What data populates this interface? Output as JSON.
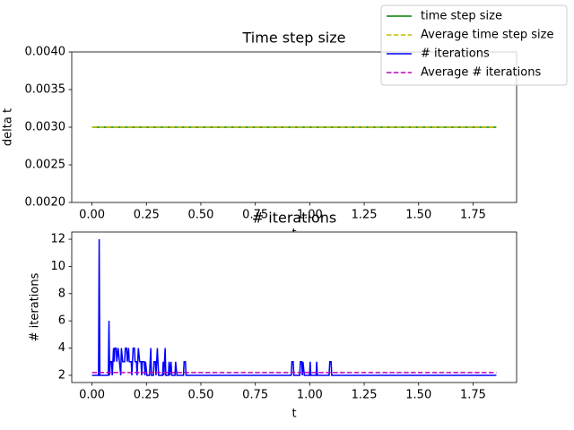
{
  "chart_data": [
    {
      "type": "line",
      "title": "Time step size",
      "x_label": "t",
      "y_label": "delta t",
      "xlim": [
        -0.093,
        1.95
      ],
      "ylim": [
        0.002,
        0.004
      ],
      "xticks": [
        {
          "value": 0,
          "label": "0.00"
        },
        {
          "value": 0.25,
          "label": "0.25"
        },
        {
          "value": 0.5,
          "label": "0.50"
        },
        {
          "value": 0.75,
          "label": "0.75"
        },
        {
          "value": 1,
          "label": "1.00"
        },
        {
          "value": 1.25,
          "label": "1.25"
        },
        {
          "value": 1.5,
          "label": "1.50"
        },
        {
          "value": 1.75,
          "label": "1.75"
        }
      ],
      "yticks": [
        {
          "value": 0.002,
          "label": "0.0020"
        },
        {
          "value": 0.0025,
          "label": "0.0025"
        },
        {
          "value": 0.003,
          "label": "0.0030"
        },
        {
          "value": 0.0035,
          "label": "0.0035"
        },
        {
          "value": 0.004,
          "label": "0.0040"
        }
      ],
      "series": [
        {
          "name": "time step size",
          "color": "#008000",
          "dashed": false,
          "x": [
            0,
            1.857
          ],
          "values": [
            0.003,
            0.003
          ]
        },
        {
          "name": "Average time step size",
          "color": "#bfbf00",
          "dashed": true,
          "x": [
            0,
            1.857
          ],
          "values": [
            0.003,
            0.003
          ]
        }
      ]
    },
    {
      "type": "line",
      "title": "# iterations",
      "x_label": "t",
      "y_label": "# iterations",
      "xlim": [
        -0.093,
        1.95
      ],
      "ylim": [
        1.47,
        12.53
      ],
      "xticks": [
        {
          "value": 0,
          "label": "0.00"
        },
        {
          "value": 0.25,
          "label": "0.25"
        },
        {
          "value": 0.5,
          "label": "0.50"
        },
        {
          "value": 0.75,
          "label": "0.75"
        },
        {
          "value": 1,
          "label": "1.00"
        },
        {
          "value": 1.25,
          "label": "1.25"
        },
        {
          "value": 1.5,
          "label": "1.50"
        },
        {
          "value": 1.75,
          "label": "1.75"
        }
      ],
      "yticks": [
        2,
        4,
        6,
        8,
        10,
        12
      ],
      "series": [
        {
          "name": "# iterations",
          "color": "#0000ff",
          "dashed": false,
          "x": [
            0,
            0.03,
            0.033,
            0.036,
            0.075,
            0.078,
            0.081,
            0.084,
            0.09,
            0.093,
            0.096,
            0.099,
            0.102,
            0.105,
            0.111,
            0.114,
            0.12,
            0.126,
            0.132,
            0.135,
            0.141,
            0.15,
            0.153,
            0.159,
            0.162,
            0.168,
            0.171,
            0.18,
            0.183,
            0.186,
            0.189,
            0.195,
            0.198,
            0.204,
            0.207,
            0.21,
            0.213,
            0.219,
            0.225,
            0.228,
            0.231,
            0.24,
            0.243,
            0.246,
            0.252,
            0.264,
            0.267,
            0.27,
            0.273,
            0.282,
            0.285,
            0.291,
            0.294,
            0.297,
            0.3,
            0.303,
            0.306,
            0.324,
            0.327,
            0.33,
            0.333,
            0.336,
            0.339,
            0.351,
            0.354,
            0.357,
            0.363,
            0.366,
            0.381,
            0.384,
            0.39,
            0.42,
            0.423,
            0.429,
            0.432,
            0.915,
            0.918,
            0.924,
            0.927,
            0.954,
            0.957,
            0.963,
            0.966,
            0.969,
            0.975,
            0.999,
            1.002,
            1.005,
            1.029,
            1.032,
            1.035,
            1.089,
            1.092,
            1.098,
            1.101,
            1.857
          ],
          "values": [
            2,
            2,
            12,
            2,
            2,
            6,
            2,
            3,
            3,
            2,
            3,
            4,
            3,
            4,
            4,
            3,
            4,
            3,
            2,
            4,
            3,
            3,
            4,
            4,
            3,
            4,
            3,
            3,
            2,
            3,
            4,
            4,
            3,
            3,
            2,
            3,
            4,
            3,
            3,
            2,
            3,
            3,
            2,
            3,
            2,
            2,
            3,
            4,
            2,
            2,
            3,
            3,
            2,
            3,
            4,
            3,
            2,
            2,
            3,
            2,
            3,
            4,
            2,
            2,
            3,
            2,
            3,
            2,
            2,
            3,
            2,
            2,
            3,
            3,
            2,
            2,
            3,
            3,
            2,
            2,
            3,
            3,
            2,
            3,
            2,
            2,
            3,
            2,
            2,
            3,
            2,
            2,
            3,
            3,
            2,
            2
          ]
        },
        {
          "name": "Average # iterations",
          "color": "#bf00bf",
          "dashed": true,
          "x": [
            0,
            1.857
          ],
          "values": [
            2.2,
            2.2
          ]
        }
      ]
    }
  ]
}
